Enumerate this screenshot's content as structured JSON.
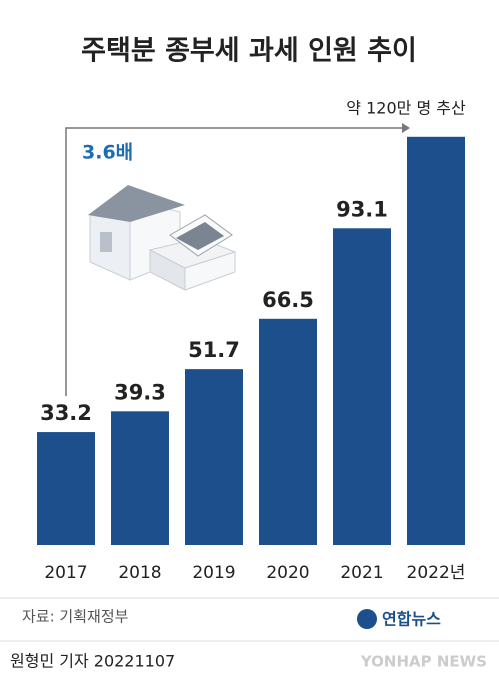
{
  "chart_data": {
    "type": "bar",
    "title": "주택분 종부세 과세 인원 추이",
    "categories": [
      "2017",
      "2018",
      "2019",
      "2020",
      "2021",
      "2022년"
    ],
    "values": [
      33.2,
      39.3,
      51.7,
      66.5,
      93.1,
      120
    ],
    "value_labels": [
      "33.2",
      "39.3",
      "51.7",
      "66.5",
      "93.1",
      "약 120만 명 추산"
    ],
    "color": "#1d4f8c",
    "ylim": [
      0,
      122
    ],
    "annotation": "3.6배",
    "source": "자료: 기획재정부",
    "credit": "원형민 기자  20221107",
    "logo": "연합뉴스",
    "logo_en": "YONHAP NEWS"
  }
}
